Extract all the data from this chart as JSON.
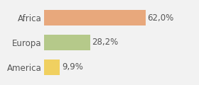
{
  "categories": [
    "Africa",
    "Europa",
    "America"
  ],
  "values": [
    62.0,
    28.2,
    9.9
  ],
  "labels": [
    "62,0%",
    "28,2%",
    "9,9%"
  ],
  "bar_colors": [
    "#e8a87c",
    "#b5c98a",
    "#f0d060"
  ],
  "background_color": "#f2f2f2",
  "xlim": [
    0,
    80
  ],
  "bar_height": 0.62,
  "label_fontsize": 8.5,
  "category_fontsize": 8.5,
  "text_color": "#555555"
}
